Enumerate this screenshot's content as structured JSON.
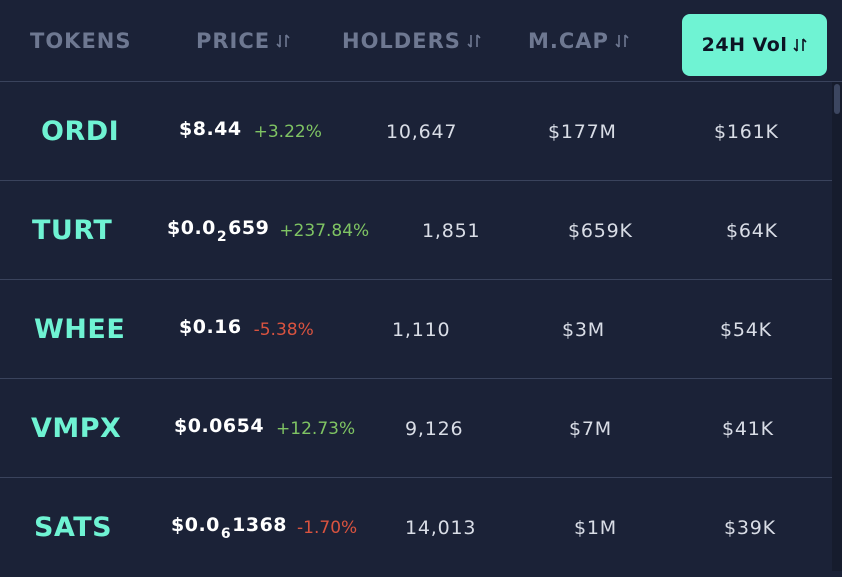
{
  "header": {
    "tokens": "TOKENS",
    "price": "PRICE",
    "holders": "HOLDERS",
    "mcap": "M.CAP",
    "vol": "24H Vol",
    "active_color": "#6ff3d3"
  },
  "rows": [
    {
      "symbol": "ORDI",
      "price_main": "$8.44",
      "price_sub": "",
      "price_tail": "",
      "change": "+3.22%",
      "direction": "up",
      "holders": "10,647",
      "mcap": "$177M",
      "vol": "$161K"
    },
    {
      "symbol": "TURT",
      "price_main": "$0.0",
      "price_sub": "2",
      "price_tail": "659",
      "change": "+237.84%",
      "direction": "up",
      "holders": "1,851",
      "mcap": "$659K",
      "vol": "$64K"
    },
    {
      "symbol": "WHEE",
      "price_main": "$0.16",
      "price_sub": "",
      "price_tail": "",
      "change": "-5.38%",
      "direction": "down",
      "holders": "1,110",
      "mcap": "$3M",
      "vol": "$54K"
    },
    {
      "symbol": "VMPX",
      "price_main": "$0.0654",
      "price_sub": "",
      "price_tail": "",
      "change": "+12.73%",
      "direction": "up",
      "holders": "9,126",
      "mcap": "$7M",
      "vol": "$41K"
    },
    {
      "symbol": "SATS",
      "price_main": "$0.0",
      "price_sub": "6",
      "price_tail": "1368",
      "change": "-1.70%",
      "direction": "down",
      "holders": "14,013",
      "mcap": "$1M",
      "vol": "$39K"
    }
  ],
  "colors": {
    "up": "#7fc463",
    "down": "#d9533f",
    "background": "#1b2237"
  }
}
